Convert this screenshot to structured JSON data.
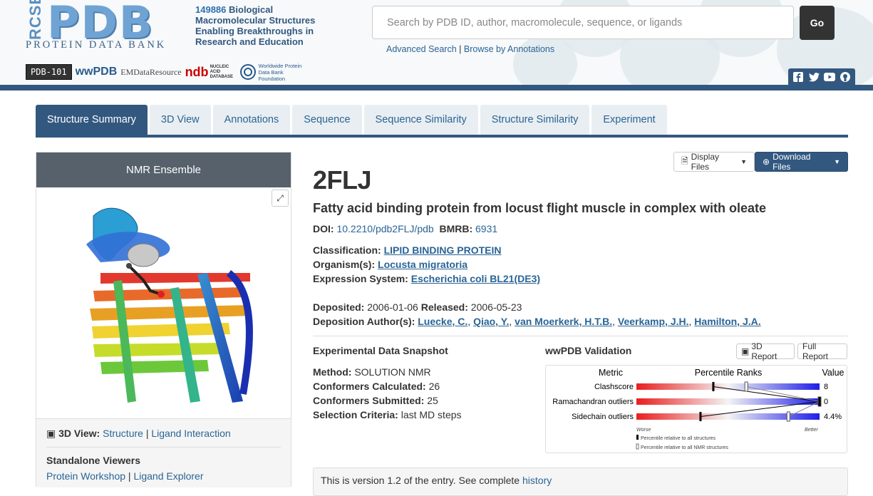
{
  "header": {
    "rcsb": "RCSB",
    "logo": "PDB",
    "subtitle": "PROTEIN DATA BANK",
    "tagline_count": "149886",
    "tagline_text": " Biological Macromolecular Structures Enabling Breakthroughs in Research and Education",
    "partners": {
      "pdb101": "PDB-101",
      "wwpdb": "wwPDB",
      "emdata": "EMDataResource",
      "ndb": "ndb",
      "ndb_sub": "NUCLEIC ACID DATABASE",
      "wwpdbf": "Worldwide Protein Data Bank Foundation"
    },
    "search_placeholder": "Search by PDB ID, author, macromolecule, sequence, or ligands",
    "go_label": "Go",
    "advanced_search": "Advanced Search",
    "separator": "|",
    "browse": "Browse by Annotations",
    "social_icons": [
      "facebook-icon",
      "twitter-icon",
      "youtube-icon",
      "github-icon"
    ]
  },
  "tabs": [
    "Structure Summary",
    "3D View",
    "Annotations",
    "Sequence",
    "Sequence Similarity",
    "Structure Similarity",
    "Experiment"
  ],
  "left_panel": {
    "heading": "NMR Ensemble",
    "view_label": "3D View:",
    "view_structure": "Structure",
    "view_sep": "|",
    "view_ligand": "Ligand Interaction",
    "standalone_heading": "Standalone Viewers",
    "protein_workshop": "Protein Workshop",
    "ligand_explorer": "Ligand Explorer"
  },
  "entry": {
    "display_files": "Display Files",
    "download_files": "Download Files",
    "id": "2FLJ",
    "title": "Fatty acid binding protein from locust flight muscle in complex with oleate",
    "doi_label": "DOI:",
    "doi": "10.2210/pdb2FLJ/pdb",
    "bmrb_label": "BMRB:",
    "bmrb": "6931",
    "classification_label": "Classification:",
    "classification": "LIPID BINDING PROTEIN",
    "organism_label": "Organism(s):",
    "organism": "Locusta migratoria",
    "expression_label": "Expression System:",
    "expression": "Escherichia coli BL21(DE3)",
    "deposited_label": "Deposited:",
    "deposited": "2006-01-06",
    "released_label": "Released:",
    "released": "2006-05-23",
    "authors_label": "Deposition Author(s):",
    "authors": [
      "Luecke, C.",
      "Qiao, Y.",
      "van Moerkerk, H.T.B.",
      "Veerkamp, J.H.",
      "Hamilton, J.A."
    ]
  },
  "snapshot": {
    "heading": "Experimental Data Snapshot",
    "method_label": "Method:",
    "method": "SOLUTION NMR",
    "calc_label": "Conformers Calculated:",
    "calc": "26",
    "sub_label": "Conformers Submitted:",
    "sub": "25",
    "criteria_label": "Selection Criteria:",
    "criteria": "last MD steps"
  },
  "validation": {
    "heading": "wwPDB Validation",
    "report_3d": "3D Report",
    "full_report": "Full Report",
    "col_metric": "Metric",
    "col_percentile": "Percentile Ranks",
    "col_value": "Value",
    "metrics": [
      {
        "name": "Clashscore",
        "value": "8",
        "all": 0.42,
        "nmr": 0.6
      },
      {
        "name": "Ramachandran outliers",
        "value": "0",
        "all": 1.0,
        "nmr": 1.0
      },
      {
        "name": "Sidechain outliers",
        "value": "4.4%",
        "all": 0.35,
        "nmr": 0.83
      }
    ],
    "worse": "Worse",
    "better": "Better",
    "legend_all": "Percentile relative to all structures",
    "legend_nmr": "Percentile relative to all NMR structures"
  },
  "version": {
    "text": "This is version 1.2 of the entry. See complete ",
    "link": "history"
  }
}
